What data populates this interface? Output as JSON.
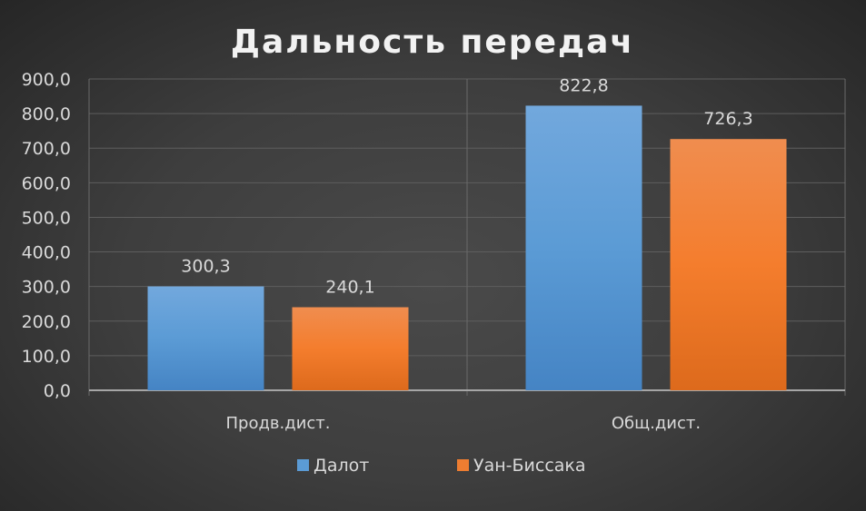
{
  "chart_data": {
    "type": "bar",
    "title": "Дальность передач",
    "categories": [
      "Продв.дист.",
      "Общ.дист."
    ],
    "series": [
      {
        "name": "Далот",
        "values": [
          300.3,
          822.8
        ],
        "color": "#5b9bd5"
      },
      {
        "name": "Уан-Биссака",
        "values": [
          240.1,
          726.3
        ],
        "color": "#ed7d31"
      }
    ],
    "data_labels": [
      [
        "300,3",
        "822,8"
      ],
      [
        "240,1",
        "726,3"
      ]
    ],
    "ylim": [
      0,
      900
    ],
    "yticks": [
      "0,0",
      "100,0",
      "200,0",
      "300,0",
      "400,0",
      "500,0",
      "600,0",
      "700,0",
      "800,0",
      "900,0"
    ],
    "xlabel": "",
    "ylabel": "",
    "grid": true,
    "legend": "bottom"
  }
}
